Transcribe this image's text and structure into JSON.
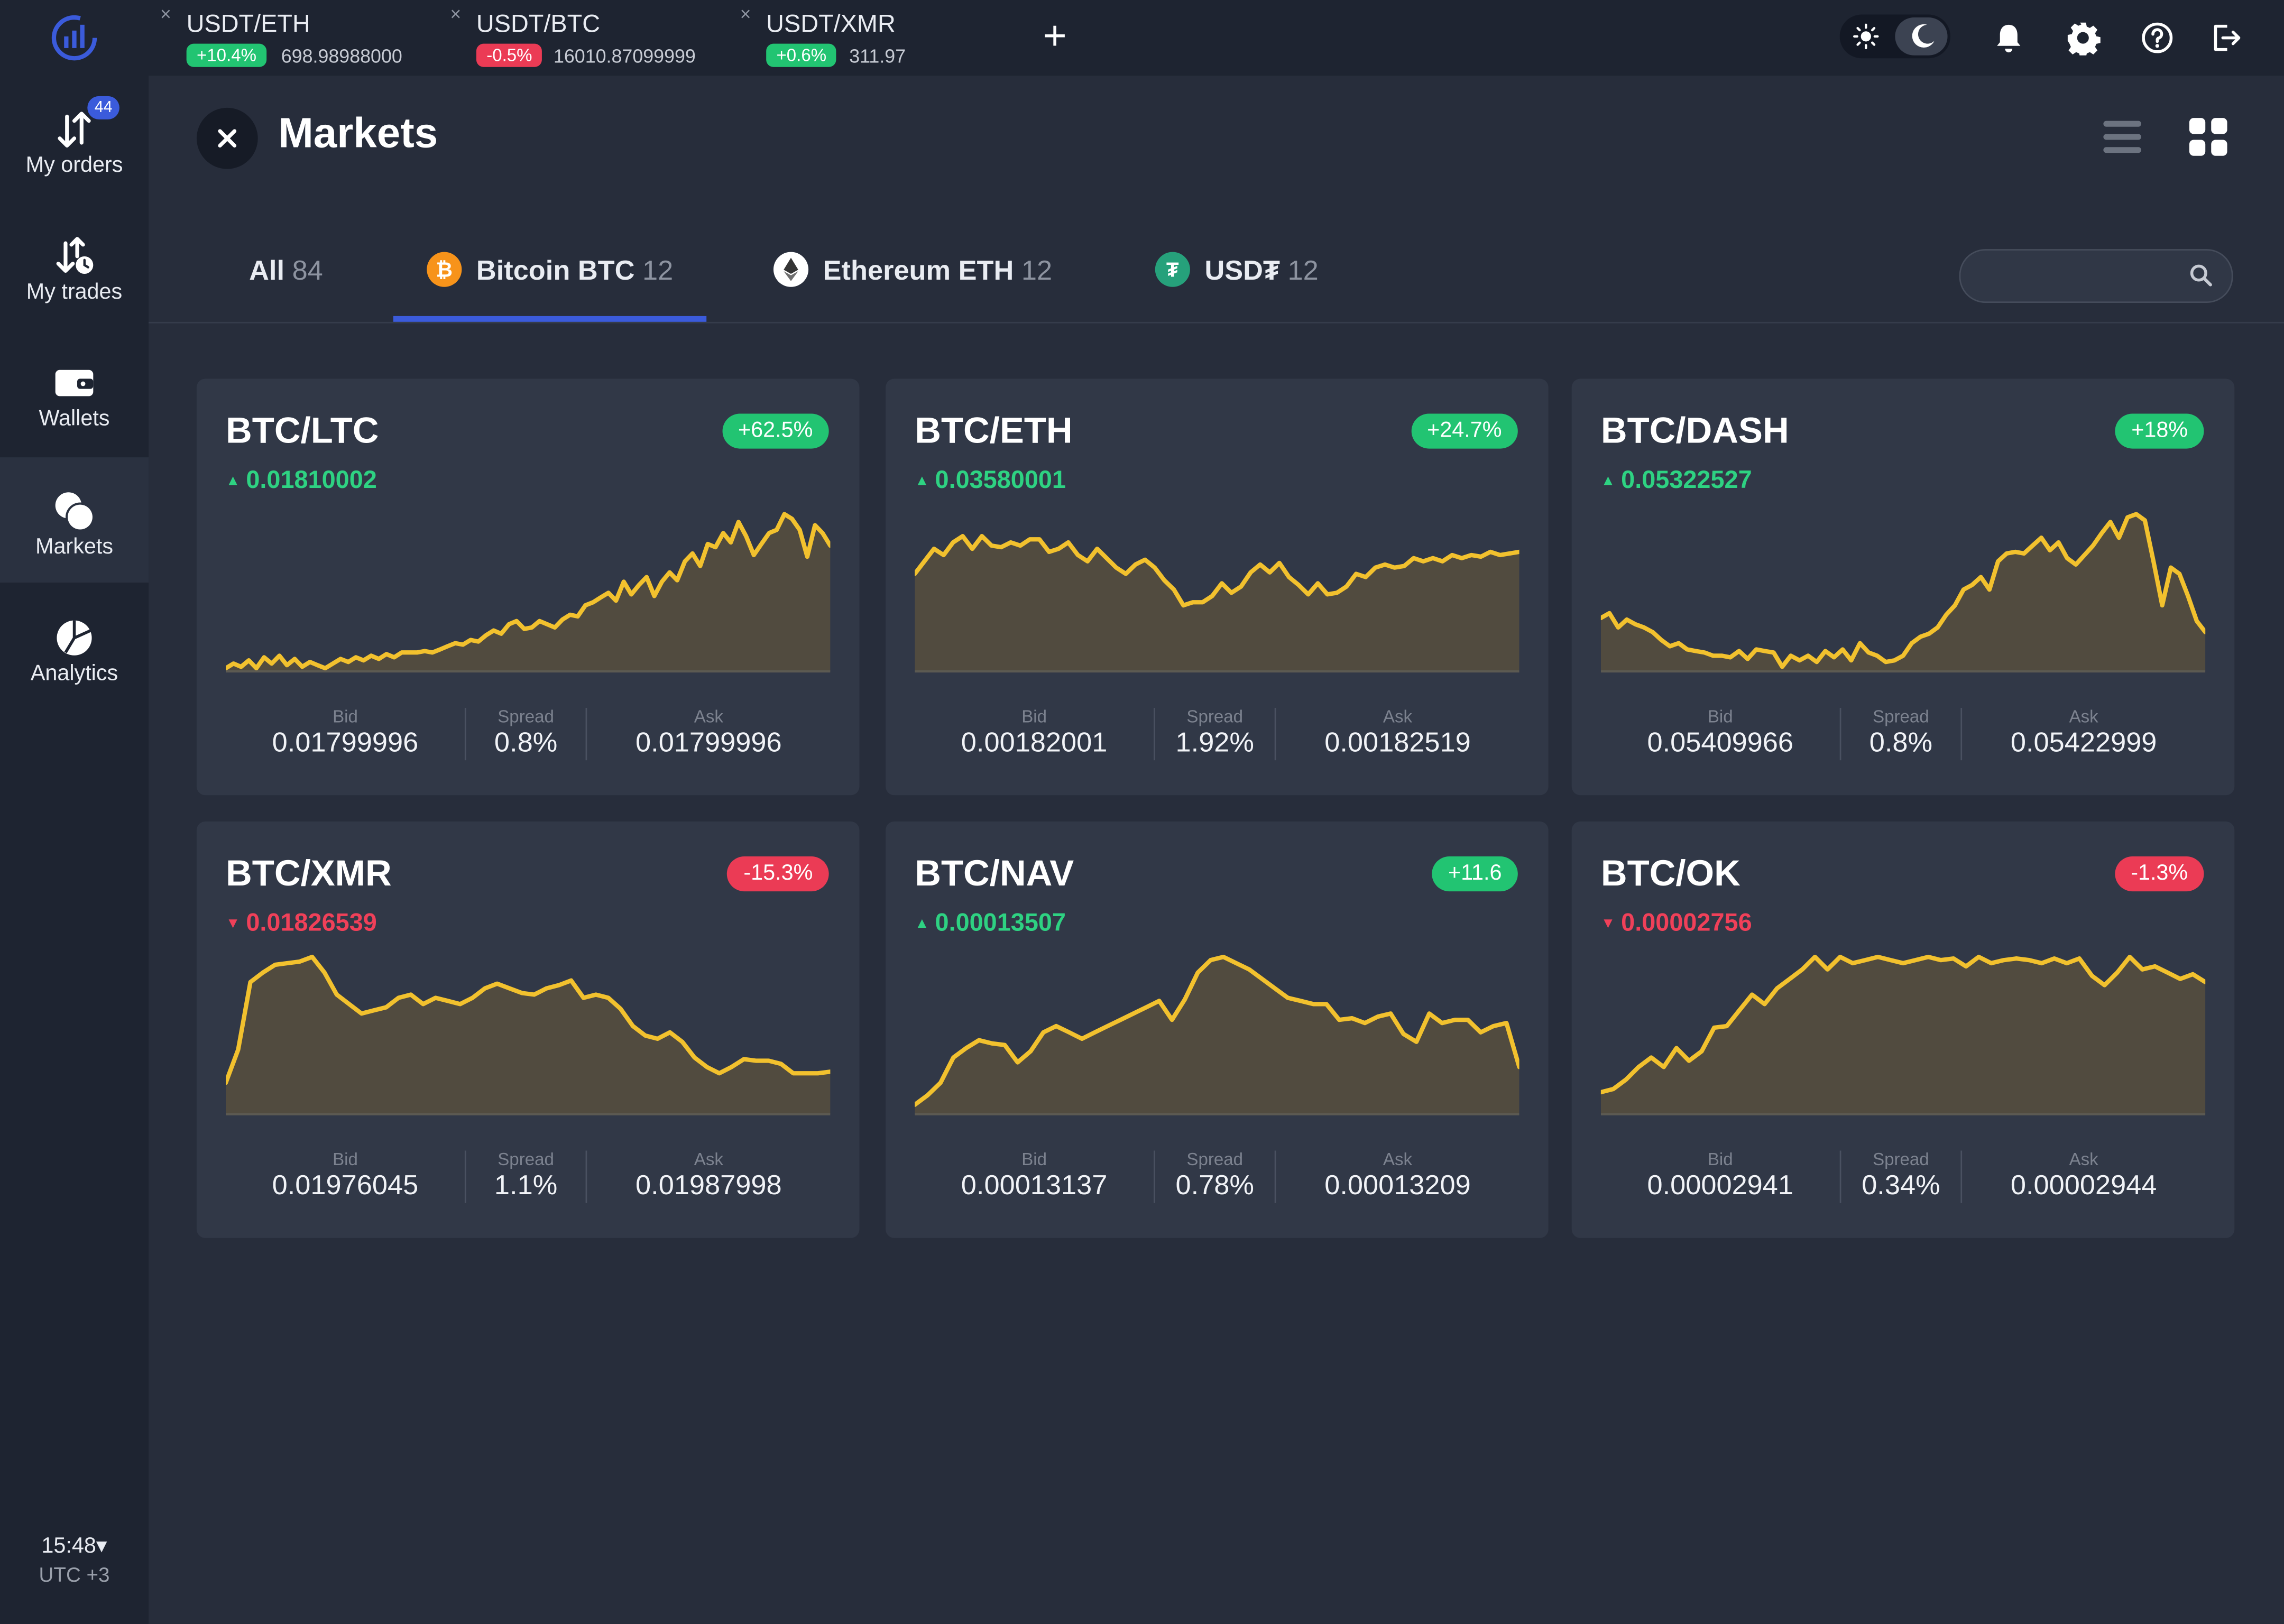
{
  "tickers": [
    {
      "pair": "USDT/ETH",
      "change": "+10.4%",
      "direction": "up",
      "price": "698.98988000"
    },
    {
      "pair": "USDT/BTC",
      "change": "-0.5%",
      "direction": "down",
      "price": "16010.87099999"
    },
    {
      "pair": "USDT/XMR",
      "change": "+0.6%",
      "direction": "up",
      "price": "311.97"
    }
  ],
  "ticker_close_label": "×",
  "add_ticker_label": "+",
  "sidebar": {
    "items": [
      {
        "label": "My orders",
        "icon": "orders-icon",
        "badge": "44"
      },
      {
        "label": "My trades",
        "icon": "trades-icon"
      },
      {
        "label": "Wallets",
        "icon": "wallet-icon"
      },
      {
        "label": "Markets",
        "icon": "markets-icon",
        "active": true
      },
      {
        "label": "Analytics",
        "icon": "analytics-icon"
      }
    ],
    "clock": "15:48▾",
    "timezone": "UTC +3"
  },
  "page": {
    "title": "Markets"
  },
  "tabs": [
    {
      "name": "All",
      "count": "84"
    },
    {
      "name": "Bitcoin BTC",
      "count": "12",
      "icon": "bitcoin-icon",
      "active": true
    },
    {
      "name": "Ethereum ETH",
      "count": "12",
      "icon": "ethereum-icon"
    },
    {
      "name": "USD₮",
      "count": "12",
      "icon": "tether-icon"
    }
  ],
  "search": {
    "placeholder": "",
    "value": ""
  },
  "stat_labels": {
    "bid": "Bid",
    "spread": "Spread",
    "ask": "Ask"
  },
  "colors": {
    "accent": "#3b5bdb",
    "up": "#2ed282",
    "down": "#f04059",
    "chart_line": "#f2c12e",
    "chart_fill": "#514b3f"
  },
  "markets": [
    {
      "pair": "BTC/LTC",
      "change": "+62.5%",
      "direction": "up",
      "last": "0.01810002",
      "bid": "0.01799996",
      "spread": "0.8%",
      "ask": "0.01799996",
      "trend": [
        0.02,
        0.05,
        0.03,
        0.07,
        0.02,
        0.09,
        0.05,
        0.1,
        0.04,
        0.08,
        0.03,
        0.06,
        0.04,
        0.02,
        0.05,
        0.08,
        0.06,
        0.09,
        0.07,
        0.1,
        0.08,
        0.11,
        0.09,
        0.12,
        0.12,
        0.12,
        0.13,
        0.12,
        0.14,
        0.16,
        0.18,
        0.17,
        0.2,
        0.19,
        0.23,
        0.26,
        0.24,
        0.3,
        0.32,
        0.27,
        0.28,
        0.32,
        0.3,
        0.28,
        0.33,
        0.36,
        0.35,
        0.42,
        0.44,
        0.47,
        0.5,
        0.45,
        0.57,
        0.49,
        0.55,
        0.6,
        0.48,
        0.57,
        0.63,
        0.58,
        0.7,
        0.75,
        0.67,
        0.81,
        0.79,
        0.88,
        0.82,
        0.95,
        0.86,
        0.74,
        0.81,
        0.88,
        0.9,
        1.0,
        0.97,
        0.9,
        0.73,
        0.93,
        0.88,
        0.8
      ]
    },
    {
      "pair": "BTC/ETH",
      "change": "+24.7%",
      "direction": "up",
      "last": "0.03580001",
      "bid": "0.00182001",
      "spread": "1.92%",
      "ask": "0.00182519",
      "trend": [
        0.62,
        0.7,
        0.78,
        0.74,
        0.82,
        0.86,
        0.78,
        0.86,
        0.8,
        0.79,
        0.82,
        0.8,
        0.84,
        0.84,
        0.76,
        0.78,
        0.82,
        0.74,
        0.7,
        0.78,
        0.72,
        0.66,
        0.62,
        0.68,
        0.71,
        0.66,
        0.58,
        0.52,
        0.42,
        0.44,
        0.44,
        0.48,
        0.56,
        0.5,
        0.54,
        0.63,
        0.68,
        0.63,
        0.69,
        0.6,
        0.55,
        0.49,
        0.56,
        0.49,
        0.5,
        0.54,
        0.62,
        0.6,
        0.66,
        0.68,
        0.66,
        0.67,
        0.72,
        0.7,
        0.72,
        0.7,
        0.74,
        0.72,
        0.74,
        0.73,
        0.76,
        0.74,
        0.75,
        0.76
      ]
    },
    {
      "pair": "BTC/DASH",
      "change": "+18%",
      "direction": "up",
      "last": "0.05322527",
      "bid": "0.05409966",
      "spread": "0.8%",
      "ask": "0.05422999",
      "trend": [
        0.34,
        0.37,
        0.28,
        0.33,
        0.3,
        0.28,
        0.25,
        0.2,
        0.16,
        0.18,
        0.14,
        0.13,
        0.12,
        0.1,
        0.1,
        0.09,
        0.13,
        0.08,
        0.14,
        0.13,
        0.12,
        0.03,
        0.1,
        0.07,
        0.1,
        0.06,
        0.13,
        0.09,
        0.14,
        0.07,
        0.18,
        0.12,
        0.1,
        0.06,
        0.07,
        0.1,
        0.18,
        0.22,
        0.24,
        0.28,
        0.36,
        0.42,
        0.52,
        0.55,
        0.6,
        0.52,
        0.7,
        0.75,
        0.76,
        0.75,
        0.8,
        0.85,
        0.77,
        0.82,
        0.72,
        0.68,
        0.74,
        0.8,
        0.88,
        0.95,
        0.85,
        0.98,
        1.0,
        0.96,
        0.7,
        0.42,
        0.66,
        0.62,
        0.48,
        0.32,
        0.25
      ]
    },
    {
      "pair": "BTC/XMR",
      "change": "-15.3%",
      "direction": "down",
      "last": "0.01826539",
      "bid": "0.01976045",
      "spread": "1.1%",
      "ask": "0.01987998",
      "trend": [
        0.2,
        0.41,
        0.84,
        0.9,
        0.95,
        0.96,
        0.97,
        1.0,
        0.9,
        0.76,
        0.7,
        0.64,
        0.66,
        0.68,
        0.74,
        0.76,
        0.7,
        0.74,
        0.72,
        0.7,
        0.74,
        0.8,
        0.83,
        0.8,
        0.77,
        0.76,
        0.8,
        0.82,
        0.85,
        0.74,
        0.76,
        0.74,
        0.67,
        0.56,
        0.5,
        0.48,
        0.52,
        0.46,
        0.36,
        0.3,
        0.26,
        0.3,
        0.35,
        0.34,
        0.34,
        0.32,
        0.26,
        0.26,
        0.26,
        0.27
      ]
    },
    {
      "pair": "BTC/NAV",
      "change": "+11.6",
      "direction": "up",
      "last": "0.00013507",
      "bid": "0.00013137",
      "spread": "0.78%",
      "ask": "0.00013209",
      "trend": [
        0.06,
        0.12,
        0.2,
        0.36,
        0.42,
        0.47,
        0.45,
        0.44,
        0.33,
        0.4,
        0.52,
        0.56,
        0.52,
        0.48,
        0.52,
        0.56,
        0.6,
        0.64,
        0.68,
        0.72,
        0.6,
        0.73,
        0.9,
        0.98,
        1.0,
        0.96,
        0.92,
        0.86,
        0.8,
        0.74,
        0.72,
        0.7,
        0.7,
        0.6,
        0.61,
        0.58,
        0.62,
        0.64,
        0.51,
        0.46,
        0.64,
        0.58,
        0.6,
        0.6,
        0.52,
        0.56,
        0.58,
        0.3
      ]
    },
    {
      "pair": "BTC/OK",
      "change": "-1.3%",
      "direction": "down",
      "last": "0.00002756",
      "bid": "0.00002941",
      "spread": "0.34%",
      "ask": "0.00002944",
      "trend": [
        0.14,
        0.16,
        0.22,
        0.3,
        0.36,
        0.3,
        0.42,
        0.34,
        0.4,
        0.55,
        0.56,
        0.66,
        0.76,
        0.7,
        0.8,
        0.86,
        0.92,
        1.0,
        0.92,
        1.0,
        0.96,
        0.98,
        1.0,
        0.98,
        0.96,
        0.98,
        1.0,
        0.98,
        0.99,
        0.94,
        1.0,
        0.96,
        0.98,
        0.99,
        0.98,
        0.96,
        0.99,
        0.96,
        0.99,
        0.88,
        0.82,
        0.9,
        1.0,
        0.92,
        0.94,
        0.9,
        0.86,
        0.89,
        0.84
      ]
    }
  ]
}
